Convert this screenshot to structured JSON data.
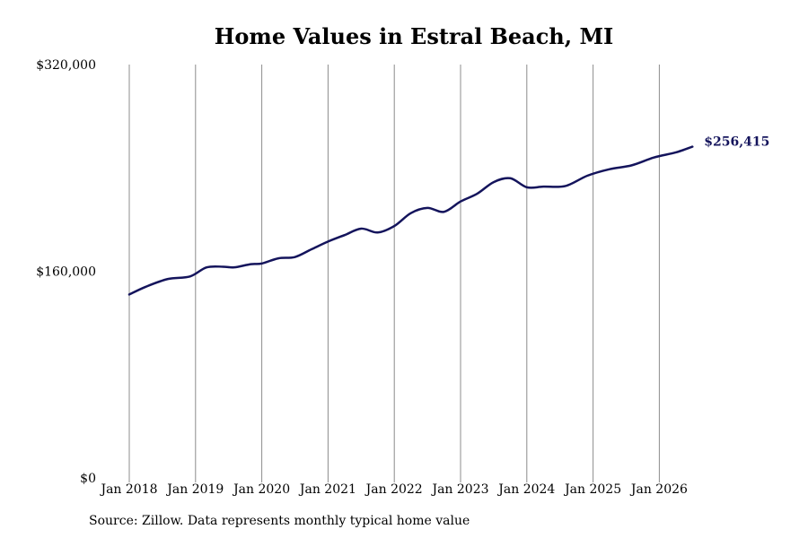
{
  "chart_data": {
    "type": "line",
    "title": "Home Values in Estral Beach, MI",
    "xlabel": "",
    "ylabel": "",
    "ylim": [
      0,
      320000
    ],
    "y_ticks": [
      {
        "value": 0,
        "label": "$0"
      },
      {
        "value": 160000,
        "label": "$160,000"
      },
      {
        "value": 320000,
        "label": "$320,000"
      }
    ],
    "x_ticks": [
      {
        "value": "2018-01",
        "label": "Jan 2018"
      },
      {
        "value": "2019-01",
        "label": "Jan 2019"
      },
      {
        "value": "2020-01",
        "label": "Jan 2020"
      },
      {
        "value": "2021-01",
        "label": "Jan 2021"
      },
      {
        "value": "2022-01",
        "label": "Jan 2022"
      },
      {
        "value": "2023-01",
        "label": "Jan 2023"
      },
      {
        "value": "2024-01",
        "label": "Jan 2024"
      },
      {
        "value": "2025-01",
        "label": "Jan 2025"
      },
      {
        "value": "2026-01",
        "label": "Jan 2026"
      }
    ],
    "grid": "vertical",
    "line_color": "#14145c",
    "end_label": "$256,415",
    "series": [
      {
        "points": [
          {
            "x": "2018-01",
            "y": 142000
          },
          {
            "x": "2018-04",
            "y": 148000
          },
          {
            "x": "2018-08",
            "y": 154000
          },
          {
            "x": "2018-12",
            "y": 156000
          },
          {
            "x": "2019-03",
            "y": 163000
          },
          {
            "x": "2019-06",
            "y": 163500
          },
          {
            "x": "2019-08",
            "y": 163000
          },
          {
            "x": "2019-11",
            "y": 165500
          },
          {
            "x": "2020-01",
            "y": 166000
          },
          {
            "x": "2020-04",
            "y": 170000
          },
          {
            "x": "2020-07",
            "y": 171000
          },
          {
            "x": "2020-10",
            "y": 177000
          },
          {
            "x": "2021-01",
            "y": 183000
          },
          {
            "x": "2021-04",
            "y": 188000
          },
          {
            "x": "2021-07",
            "y": 193000
          },
          {
            "x": "2021-10",
            "y": 190000
          },
          {
            "x": "2022-01",
            "y": 195000
          },
          {
            "x": "2022-04",
            "y": 205000
          },
          {
            "x": "2022-07",
            "y": 209000
          },
          {
            "x": "2022-10",
            "y": 206000
          },
          {
            "x": "2023-01",
            "y": 214000
          },
          {
            "x": "2023-04",
            "y": 220000
          },
          {
            "x": "2023-07",
            "y": 229000
          },
          {
            "x": "2023-10",
            "y": 232000
          },
          {
            "x": "2024-01",
            "y": 225000
          },
          {
            "x": "2024-04",
            "y": 225500
          },
          {
            "x": "2024-08",
            "y": 226000
          },
          {
            "x": "2024-12",
            "y": 234000
          },
          {
            "x": "2025-04",
            "y": 239000
          },
          {
            "x": "2025-08",
            "y": 242000
          },
          {
            "x": "2025-12",
            "y": 248000
          },
          {
            "x": "2026-04",
            "y": 252000
          },
          {
            "x": "2026-07",
            "y": 256415
          }
        ]
      }
    ]
  },
  "footer": {
    "source": "Source: Zillow. Data represents monthly typical home value"
  }
}
